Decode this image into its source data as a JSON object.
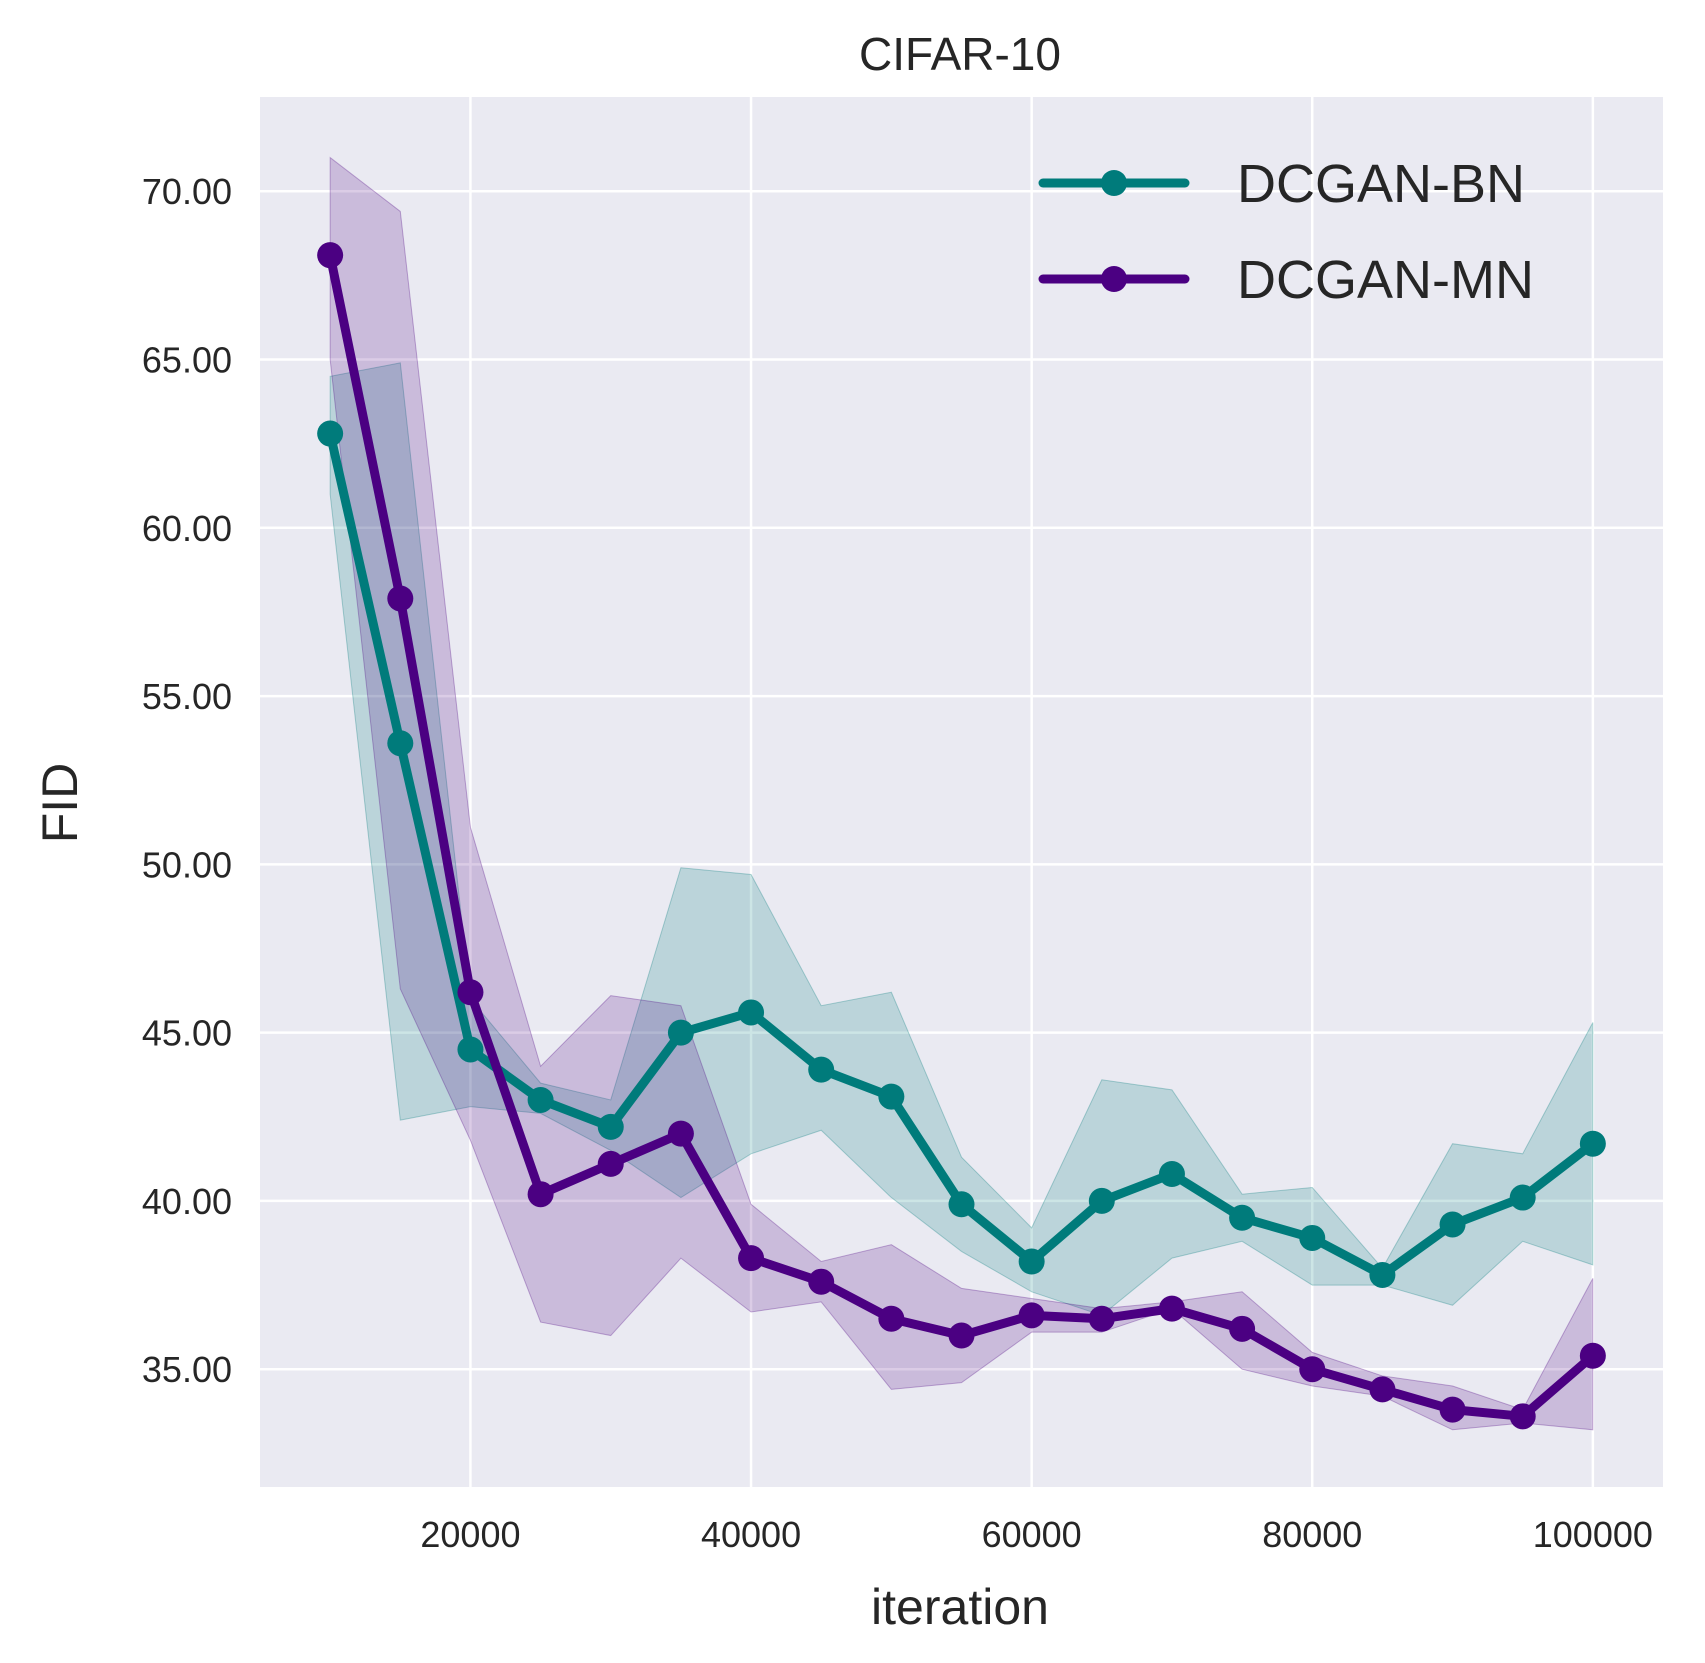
{
  "chart_data": {
    "type": "line",
    "title": "CIFAR-10",
    "xlabel": "iteration",
    "ylabel": "FID",
    "xlim": [
      5000,
      105000
    ],
    "ylim": [
      31.5,
      72.8
    ],
    "xticks": [
      20000,
      40000,
      60000,
      80000,
      100000
    ],
    "xtick_labels": [
      "20000",
      "40000",
      "60000",
      "80000",
      "100000"
    ],
    "yticks": [
      35,
      40,
      45,
      50,
      55,
      60,
      65,
      70
    ],
    "ytick_labels": [
      "35.00",
      "40.00",
      "45.00",
      "50.00",
      "55.00",
      "60.00",
      "65.00",
      "70.00"
    ],
    "grid": true,
    "legend_position": "top-right",
    "x": [
      10000,
      15000,
      20000,
      25000,
      30000,
      35000,
      40000,
      45000,
      50000,
      55000,
      60000,
      65000,
      70000,
      75000,
      80000,
      85000,
      90000,
      95000,
      100000
    ],
    "series": [
      {
        "name": "DCGAN-BN",
        "color": "#007b7b",
        "values": [
          62.8,
          53.6,
          44.5,
          43.0,
          42.2,
          45.0,
          45.6,
          43.9,
          43.1,
          39.9,
          38.2,
          40.0,
          40.8,
          39.5,
          38.9,
          37.8,
          39.3,
          40.1,
          41.7
        ],
        "lower": [
          61.0,
          42.4,
          42.8,
          42.6,
          41.5,
          40.1,
          41.4,
          42.1,
          40.1,
          38.5,
          37.3,
          36.6,
          38.3,
          38.8,
          37.5,
          37.5,
          36.9,
          38.8,
          38.1
        ],
        "upper": [
          64.5,
          64.9,
          46.0,
          43.5,
          43.0,
          49.9,
          49.7,
          45.8,
          46.2,
          41.3,
          39.2,
          43.6,
          43.3,
          40.2,
          40.4,
          38.0,
          41.7,
          41.4,
          45.3
        ]
      },
      {
        "name": "DCGAN-MN",
        "color": "#4b0082",
        "values": [
          68.1,
          57.9,
          46.2,
          40.2,
          41.1,
          42.0,
          38.3,
          37.6,
          36.5,
          36.0,
          36.6,
          36.5,
          36.8,
          36.2,
          35.0,
          34.4,
          33.8,
          33.6,
          35.4
        ],
        "lower": [
          65.0,
          46.3,
          41.8,
          36.4,
          36.0,
          38.3,
          36.7,
          37.0,
          34.4,
          34.6,
          36.1,
          36.1,
          36.8,
          35.0,
          34.5,
          34.2,
          33.2,
          33.4,
          33.2
        ],
        "upper": [
          71.0,
          69.4,
          51.1,
          44.0,
          46.1,
          45.8,
          39.9,
          38.2,
          38.7,
          37.4,
          37.1,
          36.8,
          37.0,
          37.3,
          35.5,
          34.8,
          34.5,
          33.8,
          37.7
        ]
      }
    ]
  }
}
